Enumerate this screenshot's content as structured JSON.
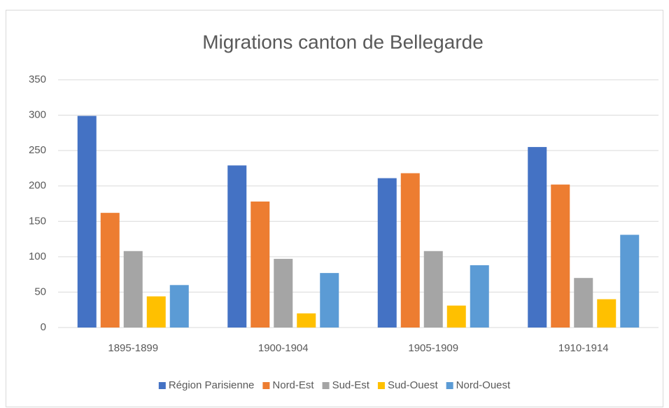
{
  "chart_data": {
    "type": "bar",
    "title": "Migrations canton de Bellegarde",
    "categories": [
      "1895-1899",
      "1900-1904",
      "1905-1909",
      "1910-1914"
    ],
    "series": [
      {
        "name": "Région Parisienne",
        "color": "#4472c4",
        "values": [
          299,
          229,
          211,
          255
        ]
      },
      {
        "name": "Nord-Est",
        "color": "#ed7d31",
        "values": [
          162,
          178,
          218,
          202
        ]
      },
      {
        "name": "Sud-Est",
        "color": "#a5a5a5",
        "values": [
          108,
          97,
          108,
          70
        ]
      },
      {
        "name": "Sud-Ouest",
        "color": "#ffc000",
        "values": [
          44,
          20,
          31,
          40
        ]
      },
      {
        "name": "Nord-Ouest",
        "color": "#5b9bd5",
        "values": [
          60,
          77,
          88,
          131
        ]
      }
    ],
    "ylim": [
      0,
      350
    ],
    "yticks": [
      0,
      50,
      100,
      150,
      200,
      250,
      300,
      350
    ],
    "grid": true,
    "legend": "bottom"
  }
}
